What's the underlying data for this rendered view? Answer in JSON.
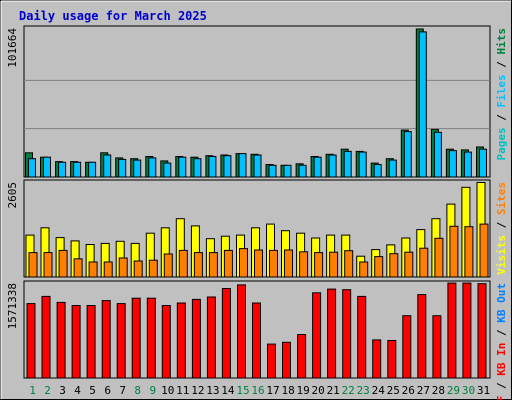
{
  "chart_data": {
    "type": "bar",
    "title": "Daily usage for March 2025",
    "categories": [
      "1",
      "2",
      "3",
      "4",
      "5",
      "6",
      "7",
      "8",
      "9",
      "10",
      "11",
      "12",
      "13",
      "14",
      "15",
      "16",
      "17",
      "18",
      "19",
      "20",
      "21",
      "22",
      "23",
      "24",
      "25",
      "26",
      "27",
      "28",
      "29",
      "30",
      "31"
    ],
    "weekend_days": [
      "1",
      "2",
      "8",
      "9",
      "15",
      "16",
      "22",
      "23",
      "29",
      "30"
    ],
    "colors": {
      "title": "#0000cc",
      "background": "#c0c0c0",
      "hits": "#008040",
      "files": "#00c0ff",
      "pages": "#00c0c0",
      "visits": "#ffff00",
      "sites": "#ff8000",
      "kbin": "#ff0000",
      "kbout": "#0080ff",
      "weekend_label": "#008040",
      "weekday_label": "#000000"
    },
    "panels": {
      "hits": {
        "max_label": "101664",
        "ylim": [
          0,
          101664
        ],
        "legend": [
          {
            "key": "pages",
            "text": "Pages"
          },
          {
            "key": "files",
            "text": "Files"
          },
          {
            "key": "hits",
            "text": "Hits"
          }
        ],
        "series": [
          {
            "key": "hits",
            "values": [
              16500,
              13500,
              10500,
              10500,
              10000,
              16500,
              13000,
              12500,
              14000,
              11000,
              14000,
              13500,
              14500,
              15000,
              16000,
              15500,
              8500,
              8000,
              9000,
              14000,
              15500,
              19000,
              17500,
              9500,
              12500,
              32000,
              101000,
              32500,
              19000,
              18500,
              20500
            ]
          },
          {
            "key": "files",
            "values": [
              12500,
              13500,
              10000,
              10000,
              10000,
              15000,
              12000,
              11500,
              13000,
              9500,
              13500,
              12500,
              14000,
              14500,
              16000,
              15000,
              8000,
              8000,
              8000,
              13500,
              15000,
              17500,
              17000,
              8500,
              11500,
              31000,
              99000,
              30500,
              18000,
              17000,
              19000
            ]
          }
        ]
      },
      "visits": {
        "max_label": "2605",
        "ylim": [
          0,
          2605
        ],
        "legend": [
          {
            "key": "visits",
            "text": "Visits"
          },
          {
            "key": "sites",
            "text": "Sites"
          }
        ],
        "series": [
          {
            "key": "visits",
            "values": [
              1150,
              1350,
              1080,
              990,
              890,
              920,
              980,
              920,
              1200,
              1350,
              1600,
              1400,
              1050,
              1120,
              1150,
              1350,
              1450,
              1270,
              1200,
              1070,
              1150,
              1150,
              570,
              750,
              880,
              1070,
              1300,
              1600,
              2000,
              2460,
              2590
            ]
          },
          {
            "key": "sites",
            "values": [
              670,
              670,
              730,
              500,
              410,
              410,
              520,
              440,
              460,
              630,
              730,
              670,
              670,
              730,
              780,
              740,
              730,
              740,
              690,
              670,
              680,
              720,
              410,
              560,
              640,
              680,
              790,
              1060,
              1390,
              1380,
              1450
            ]
          }
        ]
      },
      "kbytes": {
        "max_label": "1571338",
        "ylim": [
          0,
          1571338
        ],
        "legend": [
          {
            "key": "kbin",
            "text": "KB In"
          },
          {
            "key": "kbout",
            "text": "KB Out"
          }
        ],
        "legend_prefix": "KB F",
        "series": [
          {
            "key": "kbin",
            "values": [
              1230000,
              1350000,
              1250000,
              1200000,
              1200000,
              1280000,
              1230000,
              1320000,
              1320000,
              1200000,
              1240000,
              1300000,
              1340000,
              1480000,
              1540000,
              1240000,
              560000,
              590000,
              720000,
              1410000,
              1470000,
              1460000,
              1350000,
              630000,
              620000,
              1030000,
              1380000,
              1030000,
              1570000,
              1570000,
              1560000
            ]
          }
        ]
      }
    }
  }
}
